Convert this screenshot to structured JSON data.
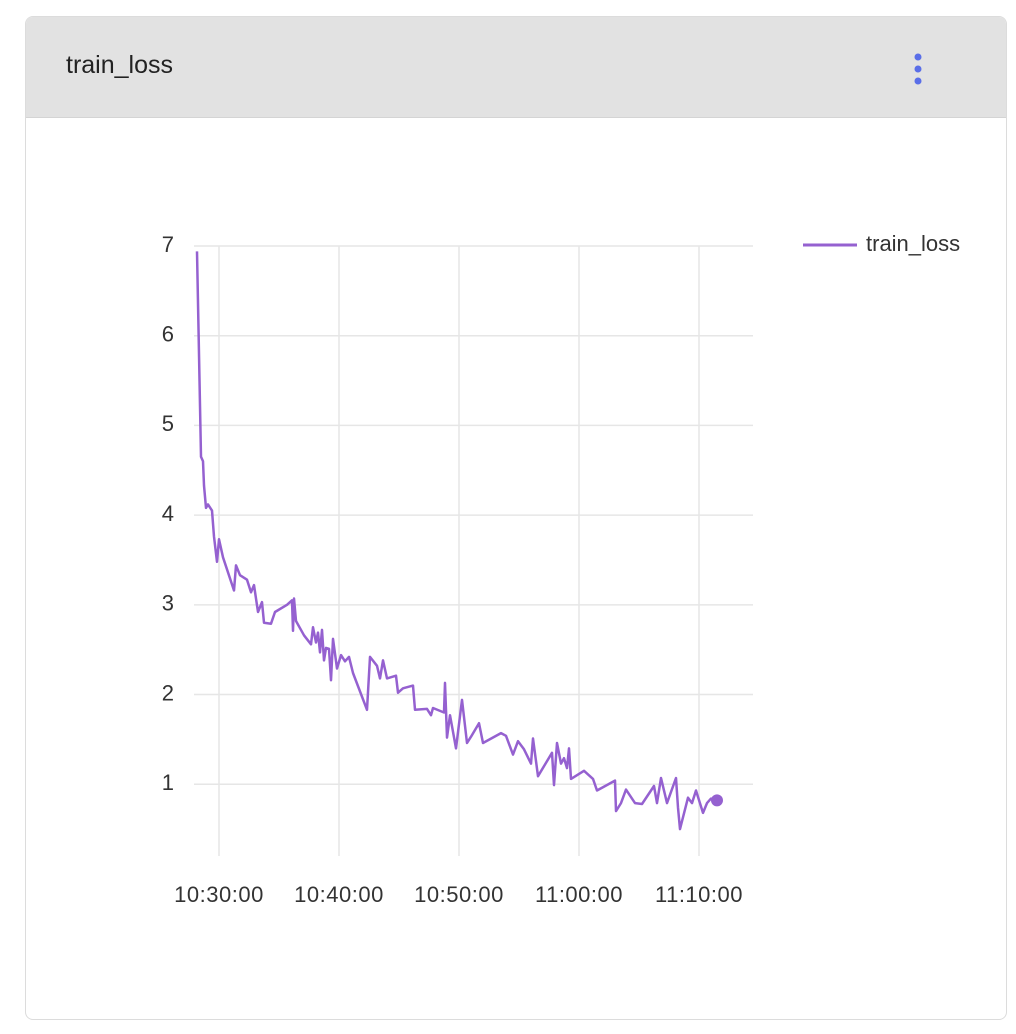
{
  "title": "train_loss",
  "chart_data": {
    "type": "line",
    "x": [
      "10:28:10",
      "10:28:30",
      "10:28:40",
      "10:28:45",
      "10:28:55",
      "10:29:05",
      "10:29:25",
      "10:29:35",
      "10:29:50",
      "10:30:00",
      "10:30:20",
      "10:31:15",
      "10:31:25",
      "10:31:45",
      "10:32:20",
      "10:32:40",
      "10:32:55",
      "10:33:15",
      "10:33:35",
      "10:33:45",
      "10:34:20",
      "10:34:40",
      "10:35:40",
      "10:36:05",
      "10:36:10",
      "10:36:15",
      "10:36:25",
      "10:37:05",
      "10:37:40",
      "10:37:50",
      "10:38:05",
      "10:38:15",
      "10:38:25",
      "10:38:35",
      "10:38:45",
      "10:38:55",
      "10:39:10",
      "10:39:20",
      "10:39:30",
      "10:39:50",
      "10:40:10",
      "10:40:30",
      "10:40:50",
      "10:41:10",
      "10:42:20",
      "10:42:35",
      "10:43:10",
      "10:43:25",
      "10:43:40",
      "10:44:00",
      "10:44:45",
      "10:44:55",
      "10:45:20",
      "10:46:10",
      "10:46:20",
      "10:47:20",
      "10:47:40",
      "10:47:50",
      "10:48:45",
      "10:48:50",
      "10:49:00",
      "10:49:15",
      "10:49:45",
      "10:50:15",
      "10:50:40",
      "10:51:00",
      "10:51:40",
      "10:52:00",
      "10:53:30",
      "10:53:55",
      "10:54:30",
      "10:54:55",
      "10:55:25",
      "10:56:00",
      "10:56:10",
      "10:56:35",
      "10:57:45",
      "10:57:55",
      "10:58:10",
      "10:58:30",
      "10:58:45",
      "10:59:00",
      "10:59:10",
      "10:59:20",
      "11:00:25",
      "11:01:10",
      "11:01:30",
      "11:03:00",
      "11:03:05",
      "11:03:30",
      "11:03:55",
      "11:04:40",
      "11:05:15",
      "11:06:15",
      "11:06:30",
      "11:06:50",
      "11:07:20",
      "11:08:05",
      "11:08:15",
      "11:08:25",
      "11:09:05",
      "11:09:25",
      "11:09:45",
      "11:10:20",
      "11:10:40",
      "11:11:00",
      "11:11:30"
    ],
    "series": [
      {
        "name": "train_loss",
        "color": "#9561d0",
        "values": [
          6.94,
          4.65,
          4.6,
          4.33,
          4.08,
          4.12,
          4.05,
          3.76,
          3.48,
          3.73,
          3.53,
          3.16,
          3.44,
          3.33,
          3.28,
          3.14,
          3.22,
          2.92,
          3.03,
          2.8,
          2.79,
          2.92,
          3.0,
          3.05,
          2.71,
          3.07,
          2.82,
          2.66,
          2.56,
          2.75,
          2.58,
          2.69,
          2.47,
          2.72,
          2.38,
          2.52,
          2.51,
          2.16,
          2.62,
          2.29,
          2.44,
          2.37,
          2.42,
          2.24,
          1.83,
          2.42,
          2.32,
          2.18,
          2.38,
          2.18,
          2.21,
          2.02,
          2.07,
          2.1,
          1.83,
          1.84,
          1.77,
          1.85,
          1.8,
          2.13,
          1.52,
          1.77,
          1.4,
          1.94,
          1.46,
          1.53,
          1.68,
          1.46,
          1.57,
          1.54,
          1.33,
          1.48,
          1.39,
          1.23,
          1.51,
          1.09,
          1.35,
          0.99,
          1.46,
          1.23,
          1.29,
          1.18,
          1.4,
          1.06,
          1.15,
          1.06,
          0.93,
          1.04,
          0.7,
          0.79,
          0.94,
          0.79,
          0.78,
          0.98,
          0.79,
          1.07,
          0.79,
          1.07,
          0.74,
          0.5,
          0.85,
          0.79,
          0.93,
          0.68,
          0.79,
          0.84,
          0.82
        ]
      }
    ],
    "xlim": [
      "10:27:55",
      "11:14:30"
    ],
    "xticks": [
      "10:30:00",
      "10:40:00",
      "10:50:00",
      "11:00:00",
      "11:10:00"
    ],
    "ylim": [
      0.2,
      7
    ],
    "yticks": [
      1,
      2,
      3,
      4,
      5,
      6,
      7
    ],
    "grid": true,
    "legend": "top-right"
  }
}
